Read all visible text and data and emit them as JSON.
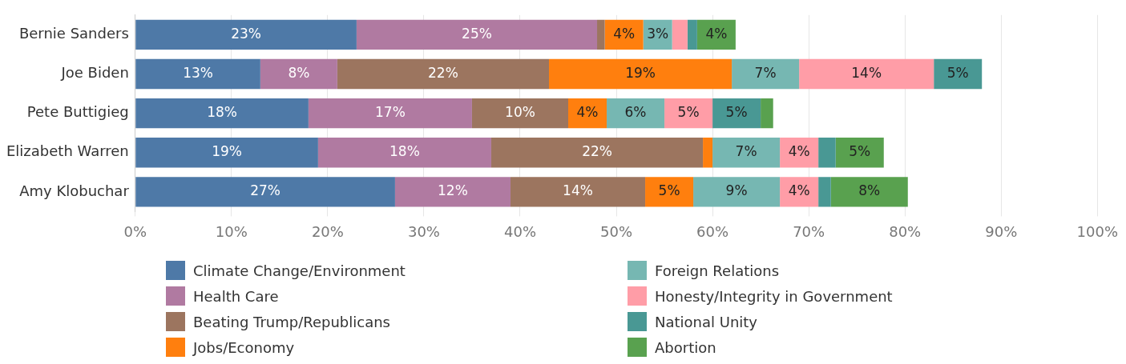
{
  "chart_data": {
    "type": "bar",
    "orientation": "horizontal",
    "stacked": true,
    "categories": [
      "Bernie Sanders",
      "Joe Biden",
      "Pete Buttigieg",
      "Elizabeth Warren",
      "Amy Klobuchar"
    ],
    "series": [
      {
        "name": "Climate Change/Environment",
        "color": "#4e79a7",
        "values": [
          23,
          13,
          18,
          19,
          27
        ],
        "value_labels": [
          "23%",
          "13%",
          "18%",
          "19%",
          "27%"
        ]
      },
      {
        "name": "Health Care",
        "color": "#b07aa1",
        "values": [
          25,
          8,
          17,
          18,
          12
        ],
        "value_labels": [
          "25%",
          "8%",
          "17%",
          "18%",
          "12%"
        ]
      },
      {
        "name": "Beating Trump/Republicans",
        "color": "#9c755f",
        "values": [
          0.8,
          22,
          10,
          22,
          14
        ],
        "value_labels": [
          null,
          "22%",
          "10%",
          "22%",
          "14%"
        ]
      },
      {
        "name": "Jobs/Economy",
        "color": "#ff7f0e",
        "values": [
          4,
          19,
          4,
          1.0,
          5
        ],
        "value_labels": [
          "4%",
          "19%",
          "4%",
          null,
          "5%"
        ]
      },
      {
        "name": "Foreign Relations",
        "color": "#76b7b2",
        "values": [
          3,
          7,
          6,
          7,
          9
        ],
        "value_labels": [
          "3%",
          "7%",
          "6%",
          "7%",
          "9%"
        ]
      },
      {
        "name": "Honesty/Integrity in Government",
        "color": "#ff9da7",
        "values": [
          1.6,
          14,
          5,
          4,
          4
        ],
        "value_labels": [
          null,
          "14%",
          "5%",
          "4%",
          "4%"
        ]
      },
      {
        "name": "National Unity",
        "color": "#499894",
        "values": [
          1.0,
          5,
          5,
          1.8,
          1.3
        ],
        "value_labels": [
          null,
          "5%",
          "5%",
          null,
          null
        ]
      },
      {
        "name": "Abortion",
        "color": "#59a14f",
        "values": [
          4,
          null,
          1.3,
          5,
          8
        ],
        "value_labels": [
          "4%",
          null,
          null,
          "5%",
          "8%"
        ]
      }
    ],
    "xlim": [
      0,
      100
    ],
    "xticks": [
      {
        "value": 0,
        "label": "0%"
      },
      {
        "value": 10,
        "label": "10%"
      },
      {
        "value": 20,
        "label": "20%"
      },
      {
        "value": 30,
        "label": "30%"
      },
      {
        "value": 40,
        "label": "40%"
      },
      {
        "value": 50,
        "label": "50%"
      },
      {
        "value": 60,
        "label": "60%"
      },
      {
        "value": 70,
        "label": "70%"
      },
      {
        "value": 80,
        "label": "80%"
      },
      {
        "value": 90,
        "label": "90%"
      },
      {
        "value": 100,
        "label": "100%"
      }
    ],
    "grid": "x",
    "legend": "bottom"
  }
}
